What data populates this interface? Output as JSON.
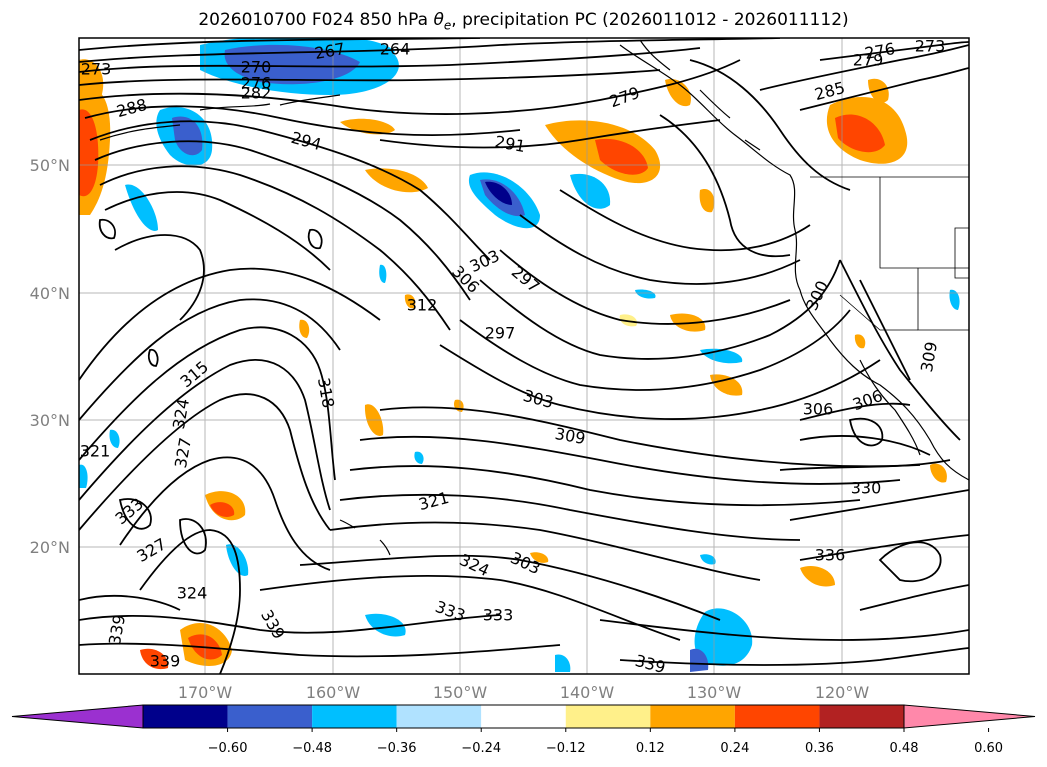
{
  "title_prefix": "2026010700 F024 850 hPa ",
  "title_theta": "θ",
  "title_theta_sub": "e",
  "title_suffix": ", precipitation PC (2026011012 - 2026011112)",
  "lon_ticks": [
    "170°W",
    "160°W",
    "150°W",
    "140°W",
    "130°W",
    "120°W"
  ],
  "lat_ticks": [
    "50°N",
    "40°N",
    "30°N",
    "20°N"
  ],
  "contour_labels": [
    {
      "text": "273"
    },
    {
      "text": "270"
    },
    {
      "text": "276"
    },
    {
      "text": "282"
    },
    {
      "text": "267"
    },
    {
      "text": "264"
    },
    {
      "text": "288"
    },
    {
      "text": "294"
    },
    {
      "text": "291"
    },
    {
      "text": "279"
    },
    {
      "text": "285"
    },
    {
      "text": "276"
    },
    {
      "text": "279"
    },
    {
      "text": "273"
    },
    {
      "text": "303"
    },
    {
      "text": "297"
    },
    {
      "text": "306"
    },
    {
      "text": "312"
    },
    {
      "text": "297"
    },
    {
      "text": "300"
    },
    {
      "text": "315"
    },
    {
      "text": "318"
    },
    {
      "text": "303"
    },
    {
      "text": "309"
    },
    {
      "text": "306"
    },
    {
      "text": "306"
    },
    {
      "text": "309"
    },
    {
      "text": "324"
    },
    {
      "text": "327"
    },
    {
      "text": "321"
    },
    {
      "text": "321"
    },
    {
      "text": "303"
    },
    {
      "text": "330"
    },
    {
      "text": "333"
    },
    {
      "text": "327"
    },
    {
      "text": "324"
    },
    {
      "text": "324"
    },
    {
      "text": "336"
    },
    {
      "text": "333"
    },
    {
      "text": "333"
    },
    {
      "text": "339"
    },
    {
      "text": "339"
    },
    {
      "text": "339"
    },
    {
      "text": "339"
    }
  ],
  "colorbar": {
    "colors": [
      "#9b30d0",
      "#00008b",
      "#3a5fcd",
      "#00bfff",
      "#b0e2ff",
      "#ffffff",
      "#fff08a",
      "#ffa500",
      "#ff4500",
      "#b22222",
      "#ff88aa"
    ],
    "tick_labels": [
      "−0.60",
      "−0.48",
      "−0.36",
      "−0.24",
      "−0.12",
      "0.12",
      "0.24",
      "0.36",
      "0.48",
      "0.60"
    ]
  }
}
